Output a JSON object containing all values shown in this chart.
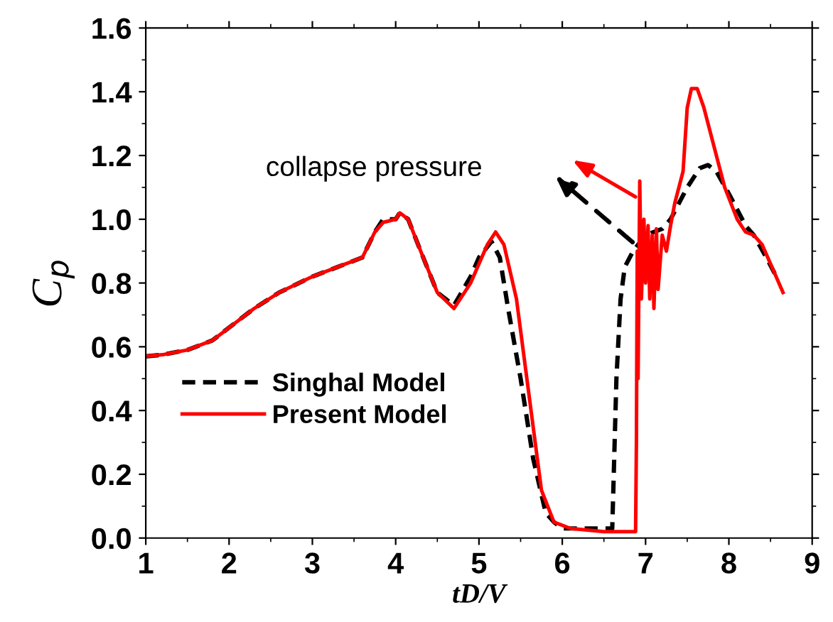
{
  "chart_data": {
    "type": "line",
    "xlabel": "tD/V",
    "ylabel": "C$_{p}$",
    "xlim": [
      1,
      9
    ],
    "ylim": [
      0,
      1.6
    ],
    "xticks": [
      1,
      2,
      3,
      4,
      5,
      6,
      7,
      8,
      9
    ],
    "yticks": [
      {
        "value": 0,
        "label": "0.0"
      },
      {
        "value": 0.2,
        "label": "0.2"
      },
      {
        "value": 0.4,
        "label": "0.4"
      },
      {
        "value": 0.6,
        "label": "0.6"
      },
      {
        "value": 0.8,
        "label": "0.8"
      },
      {
        "value": 1.0,
        "label": "1.0"
      },
      {
        "value": 1.2,
        "label": "1.2"
      },
      {
        "value": 1.4,
        "label": "1.4"
      },
      {
        "value": 1.6,
        "label": "1.6"
      }
    ],
    "grid": false,
    "legend": "bottom left",
    "marker": "none",
    "annotations": [
      "collapse pressure"
    ],
    "series": [
      {
        "name": "Singhal Model",
        "color": "#000000",
        "line_style": "dashed",
        "x": [
          1.0,
          1.2,
          1.5,
          1.8,
          2.0,
          2.3,
          2.6,
          3.0,
          3.3,
          3.6,
          3.75,
          3.85,
          4.0,
          4.05,
          4.15,
          4.3,
          4.5,
          4.7,
          4.9,
          5.0,
          5.15,
          5.25,
          5.35,
          5.5,
          5.65,
          5.8,
          5.9,
          6.0,
          6.3,
          6.6,
          6.65,
          6.7,
          6.75,
          6.85,
          7.0,
          7.2,
          7.3,
          7.5,
          7.65,
          7.75,
          7.85,
          8.0,
          8.2,
          8.3,
          8.45,
          8.55
        ],
        "values": [
          0.57,
          0.575,
          0.59,
          0.62,
          0.66,
          0.72,
          0.77,
          0.82,
          0.85,
          0.88,
          0.96,
          1.0,
          1.0,
          1.02,
          1.0,
          0.9,
          0.77,
          0.73,
          0.82,
          0.88,
          0.93,
          0.88,
          0.72,
          0.5,
          0.25,
          0.08,
          0.05,
          0.03,
          0.03,
          0.03,
          0.5,
          0.75,
          0.85,
          0.9,
          0.95,
          0.97,
          1.0,
          1.1,
          1.16,
          1.17,
          1.15,
          1.08,
          0.98,
          0.95,
          0.88,
          0.83
        ]
      },
      {
        "name": "Present Model",
        "color": "#ff0000",
        "line_style": "solid",
        "x": [
          1.0,
          1.2,
          1.5,
          1.8,
          2.0,
          2.3,
          2.6,
          3.0,
          3.3,
          3.6,
          3.75,
          3.85,
          4.0,
          4.05,
          4.15,
          4.3,
          4.5,
          4.7,
          4.9,
          5.1,
          5.2,
          5.3,
          5.45,
          5.6,
          5.75,
          5.9,
          6.1,
          6.5,
          6.88,
          6.89,
          6.9,
          6.91,
          6.93,
          6.95,
          6.98,
          7.0,
          7.03,
          7.05,
          7.08,
          7.1,
          7.13,
          7.15,
          7.2,
          7.25,
          7.3,
          7.35,
          7.45,
          7.5,
          7.55,
          7.62,
          7.7,
          7.8,
          7.95,
          8.1,
          8.2,
          8.3,
          8.4,
          8.55,
          8.65
        ],
        "values": [
          0.57,
          0.575,
          0.59,
          0.62,
          0.66,
          0.72,
          0.77,
          0.82,
          0.85,
          0.88,
          0.96,
          0.99,
          1.0,
          1.02,
          1.0,
          0.9,
          0.77,
          0.72,
          0.8,
          0.92,
          0.96,
          0.92,
          0.75,
          0.45,
          0.15,
          0.05,
          0.03,
          0.02,
          0.02,
          0.3,
          0.9,
          0.5,
          1.12,
          0.75,
          1.0,
          0.8,
          0.98,
          0.75,
          0.95,
          0.72,
          0.97,
          0.78,
          0.95,
          0.9,
          0.98,
          1.05,
          1.15,
          1.35,
          1.41,
          1.41,
          1.35,
          1.25,
          1.1,
          1.0,
          0.96,
          0.95,
          0.92,
          0.83,
          0.77
        ]
      }
    ]
  }
}
